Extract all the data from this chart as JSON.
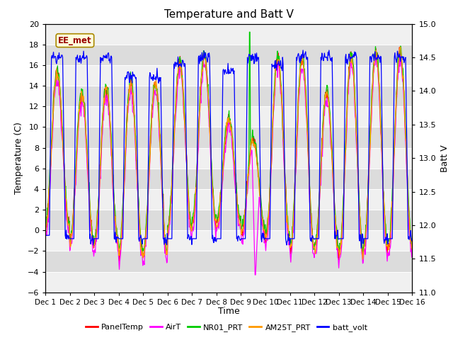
{
  "title": "Temperature and Batt V",
  "ylabel_left": "Temperature (C)",
  "ylabel_right": "Batt V",
  "xlabel": "Time",
  "ylim_left": [
    -6,
    20
  ],
  "ylim_right": [
    11.0,
    15.0
  ],
  "x_tick_labels": [
    "Dec 1",
    "Dec 2",
    "Dec 3",
    "Dec 4",
    "Dec 5",
    "Dec 6",
    "Dec 7",
    "Dec 8",
    "Dec 9",
    "Dec 10",
    "Dec 11",
    "Dec 12",
    "Dec 13",
    "Dec 14",
    "Dec 15",
    "Dec 16"
  ],
  "colors": {
    "PanelTemp": "#ff0000",
    "AirT": "#ff00ff",
    "NR01_PRT": "#00cc00",
    "AM25T_PRT": "#ff9900",
    "batt_volt": "#0000ff"
  },
  "ee_met_label": "EE_met",
  "ee_met_color": "#990000",
  "ee_met_bg": "#ffffdd",
  "background_color": "#ffffff",
  "plot_bg_light": "#f0f0f0",
  "plot_bg_dark": "#dcdcdc",
  "n_points": 720,
  "batt_min": 11.0,
  "batt_max": 15.0,
  "temp_min": -6.0,
  "temp_max": 20.0,
  "yticks_left": [
    -6,
    -4,
    -2,
    0,
    2,
    4,
    6,
    8,
    10,
    12,
    14,
    16,
    18,
    20
  ],
  "yticks_right": [
    11.0,
    11.5,
    12.0,
    12.5,
    13.0,
    13.5,
    14.0,
    14.5,
    15.0
  ],
  "legend_labels": [
    "PanelTemp",
    "AirT",
    "NR01_PRT",
    "AM25T_PRT",
    "batt_volt"
  ]
}
